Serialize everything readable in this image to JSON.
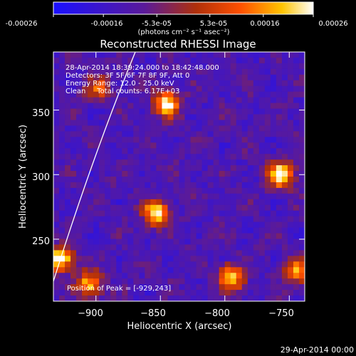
{
  "colorbar": {
    "ticks": [
      "-0.00026",
      "-0.00016",
      "-5.3e-05",
      "5.3e-05",
      "0.00016",
      "0.00026"
    ],
    "range": [
      -0.00026,
      0.00026
    ],
    "unit_label": "(photons cm⁻² s⁻¹ asec⁻²)",
    "colors": [
      "#1a10ff",
      "#5a1a9a",
      "#b0300a",
      "#ff5000",
      "#ffc400",
      "#ffffff"
    ]
  },
  "chart_data": {
    "type": "heatmap",
    "title": "Reconstructed RHESSI Image",
    "xlabel": "Heliocentric X (arcsec)",
    "ylabel": "Heliocentric Y (arcsec)",
    "xlim": [
      -933,
      -738
    ],
    "ylim": [
      202,
      395
    ],
    "x_ticks": [
      -900,
      -850,
      -800,
      -750
    ],
    "y_ticks": [
      250,
      300,
      350
    ],
    "x_tick_labels": [
      "−900",
      "−850",
      "−800",
      "−750"
    ],
    "y_tick_labels": [
      "250",
      "300",
      "350"
    ],
    "info_lines": [
      "28-Apr-2014 18:39:24.000 to 18:42:48.000",
      "Detectors: 3F 5F 6F 7F 8F 9F, Att 0",
      "Energy Range: 12.0 - 25.0 keV",
      "Clean     Total counts: 6.17E+03"
    ],
    "peak_label": "Position of Peak = [-929,243]",
    "peak_position": [
      -929,
      243
    ],
    "sources": [
      {
        "x": -853,
        "y": 270,
        "amp": 1.0
      },
      {
        "x": -845,
        "y": 355,
        "amp": 0.95
      },
      {
        "x": -898,
        "y": 367,
        "amp": 0.5
      },
      {
        "x": -757,
        "y": 300,
        "amp": 1.0
      },
      {
        "x": -795,
        "y": 220,
        "amp": 0.9
      },
      {
        "x": -927,
        "y": 235,
        "amp": 1.0
      },
      {
        "x": -905,
        "y": 215,
        "amp": 0.8
      },
      {
        "x": -745,
        "y": 225,
        "amp": 0.7
      }
    ]
  },
  "footer": {
    "date": "29-Apr-2014 00:00"
  }
}
